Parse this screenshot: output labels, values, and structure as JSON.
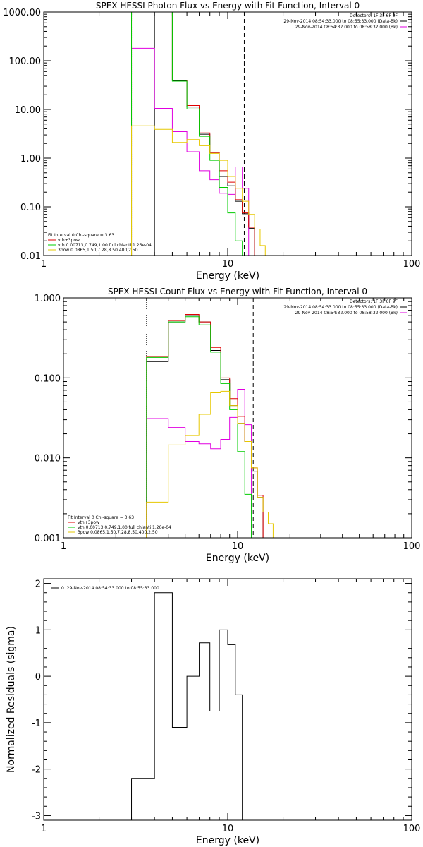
{
  "chart_data": [
    {
      "type": "line",
      "title": "SPEX HESSI Photon Flux vs Energy with Fit Function, Interval 0",
      "xlabel": "Energy (keV)",
      "ylabel": "",
      "xscale": "log",
      "yscale": "log",
      "xlim": [
        1,
        100
      ],
      "ylim": [
        0.01,
        1000
      ],
      "xticks": [
        {
          "v": 1,
          "label": "1"
        },
        {
          "v": 10,
          "label": "10"
        },
        {
          "v": 100,
          "label": "100"
        }
      ],
      "yticks": [
        {
          "v": 1000,
          "label": "1000.00"
        },
        {
          "v": 100,
          "label": "100.00"
        },
        {
          "v": 10,
          "label": "10.00"
        },
        {
          "v": 1,
          "label": "1.00"
        },
        {
          "v": 0.1,
          "label": "0.10"
        },
        {
          "v": 0.01,
          "label": "0.01"
        }
      ],
      "vlines": [
        {
          "x": 3.0,
          "style": "dotted",
          "color": "#000000"
        },
        {
          "x": 12.3,
          "style": "dashed",
          "color": "#000000"
        }
      ],
      "legend_top": {
        "position": "top-right",
        "lines": [
          "Detectors: 1F 3F 6F 9F",
          "29-Nov-2014 08:54:33.000 to 08:55:33.000 (Data-Bk)",
          "29-Nov-2014 08:54:32.000 to 08:58:32.000 (Bk)"
        ],
        "colors": [
          "",
          "#000000",
          "#e000e0"
        ]
      },
      "legend_bottom": {
        "position": "bottom-left",
        "lines": [
          "Fit Interval 0   Chi-square = 3.63",
          "vth+3pow",
          "vth 0.00713,0.749,1.00   full chianti 1.26e-04",
          "3pow 0.0865,1.50,7.28,8.50,400,2.50"
        ],
        "colors": [
          "",
          "#e00000",
          "#00cc00",
          "#e6c800"
        ]
      },
      "edges": [
        3.0,
        4.0,
        5.0,
        6.0,
        7.0,
        8.0,
        9.0,
        10.0,
        11.0,
        12.0,
        13.0,
        14.0,
        15.0,
        16.0,
        17.0
      ],
      "series": [
        {
          "color": "#000000",
          "values": [
            null,
            1000,
            39,
            11.2,
            3.1,
            1.3,
            0.42,
            0.27,
            0.13,
            0.072,
            0.036,
            null,
            null,
            null
          ]
        },
        {
          "color": "#e000e0",
          "values": [
            180,
            10.5,
            3.5,
            1.35,
            0.55,
            0.36,
            0.19,
            0.18,
            0.66,
            0.24,
            null,
            null,
            null,
            null
          ]
        },
        {
          "color": "#e00000",
          "values": [
            1000,
            1000,
            40,
            12.0,
            3.3,
            1.3,
            0.55,
            0.32,
            0.14,
            0.075,
            0.038,
            null,
            null,
            null
          ]
        },
        {
          "color": "#00cc00",
          "values": [
            1000,
            1000,
            38,
            10.2,
            2.8,
            0.9,
            0.25,
            0.075,
            0.02,
            0.002,
            null,
            null,
            null,
            null
          ]
        },
        {
          "color": "#e6c800",
          "values": [
            4.6,
            3.9,
            2.1,
            2.4,
            1.8,
            1.25,
            0.9,
            0.42,
            0.24,
            0.13,
            0.07,
            0.035,
            0.016,
            0.006
          ]
        }
      ]
    },
    {
      "type": "line",
      "title": "SPEX HESSI Count Flux vs Energy with Fit Function, Interval 0",
      "xlabel": "Energy (keV)",
      "ylabel": "",
      "xscale": "log",
      "yscale": "log",
      "xlim": [
        1,
        100
      ],
      "ylim": [
        0.001,
        1
      ],
      "xticks": [
        {
          "v": 1,
          "label": "1"
        },
        {
          "v": 10,
          "label": "10"
        },
        {
          "v": 100,
          "label": "100"
        }
      ],
      "yticks": [
        {
          "v": 1,
          "label": "1.000"
        },
        {
          "v": 0.1,
          "label": "0.100"
        },
        {
          "v": 0.01,
          "label": "0.010"
        },
        {
          "v": 0.001,
          "label": "0.001"
        }
      ],
      "vlines": [
        {
          "x": 3.0,
          "style": "dotted",
          "color": "#000000"
        },
        {
          "x": 12.3,
          "style": "dashed",
          "color": "#000000"
        }
      ],
      "legend_top": {
        "position": "top-right",
        "lines": [
          "Detectors: 1F 3F 6F 9F",
          "29-Nov-2014 08:54:33.000 to 08:55:33.000 (Data-Bk)",
          "29-Nov-2014 08:54:32.000 to 08:58:32.000 (Bk)"
        ],
        "colors": [
          "",
          "#000000",
          "#e000e0"
        ]
      },
      "legend_bottom": {
        "position": "bottom-left",
        "lines": [
          "Fit Interval 0   Chi-square = 3.63",
          "vth+3pow",
          "vth 0.00713,0.749,1.00   full chianti 1.26e-04",
          "3pow 0.0865,1.50,7.28,8.50,400,2.50"
        ],
        "colors": [
          "",
          "#e00000",
          "#00cc00",
          "#e6c800"
        ]
      },
      "edges": [
        3.0,
        4.0,
        5.0,
        6.0,
        7.0,
        8.0,
        9.0,
        10.0,
        11.0,
        12.0,
        13.0,
        14.0,
        15.0,
        16.0,
        17.0
      ],
      "series": [
        {
          "color": "#000000",
          "values": [
            0.16,
            0.5,
            0.6,
            0.5,
            0.22,
            0.095,
            0.045,
            0.027,
            0.016,
            0.0068,
            0.0032,
            null,
            null,
            null
          ]
        },
        {
          "color": "#e000e0",
          "values": [
            0.031,
            0.024,
            0.016,
            0.015,
            0.013,
            0.017,
            0.032,
            0.072,
            0.026,
            null,
            null,
            null,
            null,
            null
          ]
        },
        {
          "color": "#e00000",
          "values": [
            0.185,
            0.52,
            0.62,
            0.5,
            0.24,
            0.1,
            0.055,
            0.033,
            0.016,
            0.0075,
            0.0034,
            null,
            null,
            null
          ]
        },
        {
          "color": "#00cc00",
          "values": [
            0.18,
            0.5,
            0.58,
            0.46,
            0.21,
            0.085,
            0.04,
            0.012,
            0.0035,
            0.0008,
            null,
            null,
            null,
            null
          ]
        },
        {
          "color": "#e6c800",
          "values": [
            0.0028,
            0.0145,
            0.019,
            0.035,
            0.065,
            0.068,
            0.045,
            0.027,
            0.016,
            0.0075,
            0.0032,
            0.0021,
            0.0015,
            0.0009
          ]
        }
      ]
    },
    {
      "type": "line",
      "title": "",
      "xlabel": "Energy (keV)",
      "ylabel": "Normalized Residuals (sigma)",
      "xscale": "log",
      "yscale": "linear",
      "xlim": [
        1,
        100
      ],
      "ylim": [
        -3.1,
        2.1
      ],
      "xticks": [
        {
          "v": 1,
          "label": "1"
        },
        {
          "v": 10,
          "label": "10"
        },
        {
          "v": 100,
          "label": "100"
        }
      ],
      "yticks": [
        {
          "v": 2,
          "label": "2"
        },
        {
          "v": 1,
          "label": "1"
        },
        {
          "v": 0,
          "label": "0"
        },
        {
          "v": -1,
          "label": "-1"
        },
        {
          "v": -2,
          "label": "-2"
        },
        {
          "v": -3,
          "label": "-3"
        }
      ],
      "vlines": [],
      "legend_top": {
        "position": "top-left",
        "lines": [
          "0. 29-Nov-2014 08:54:33.000 to 08:55:33.000"
        ],
        "colors": [
          "#000000"
        ]
      },
      "edges": [
        3.0,
        4.0,
        5.0,
        6.0,
        7.0,
        8.0,
        9.0,
        10.0,
        11.0,
        12.0
      ],
      "series": [
        {
          "color": "#000000",
          "values": [
            -2.2,
            1.8,
            -1.1,
            0.0,
            0.72,
            -0.75,
            1.0,
            0.68,
            -0.4
          ]
        }
      ]
    }
  ]
}
